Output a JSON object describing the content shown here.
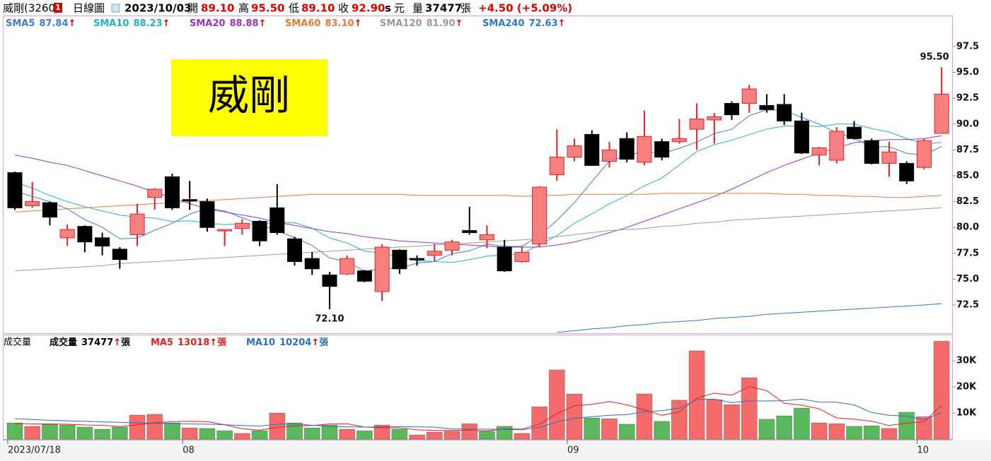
{
  "header": {
    "name": "威剛(3260)",
    "badge": "1",
    "period": "日線圖",
    "date": "2023/10/03",
    "fields": [
      {
        "label": "開",
        "value": "89.10"
      },
      {
        "label": "高",
        "value": "95.50"
      },
      {
        "label": "低",
        "value": "89.10"
      },
      {
        "label": "收",
        "value": "92.90"
      }
    ],
    "unit_s": "s",
    "currency": "元",
    "volume_label": "量",
    "volume": "37477",
    "volume_unit": "張",
    "change": "+4.50 (+5.09%)"
  },
  "chart_data": [
    {
      "type": "candlestick",
      "watermark": "威剛",
      "max_label": "95.50",
      "min_label": "72.10",
      "up_color": "#f67f7f",
      "up_line": "#e02424",
      "down_color": "#000000",
      "ylim": [
        69.77,
        100.5
      ],
      "yticks": [
        72.5,
        {
          "value": 75,
          "label": "75.0"
        },
        77.5,
        {
          "value": 80,
          "label": "80.0"
        },
        82.5,
        {
          "value": 85,
          "label": "85.0"
        },
        87.5,
        {
          "value": 90,
          "label": "90.0"
        },
        92.5,
        {
          "value": 95,
          "label": "95.0"
        },
        97.5
      ],
      "open": [
        85.3,
        82.1,
        82.4,
        79.0,
        80.1,
        79.0,
        77.9,
        79.3,
        82.9,
        84.9,
        82.7,
        82.5,
        79.7,
        79.9,
        80.6,
        81.9,
        78.9,
        77.0,
        75.4,
        75.5,
        75.8,
        73.8,
        77.8,
        77.0,
        77.3,
        77.8,
        79.7,
        78.8,
        78.1,
        76.7,
        78.4,
        85.1,
        86.8,
        89.0,
        86.4,
        88.6,
        86.3,
        88.3,
        88.3,
        89.5,
        90.4,
        92.0,
        92.0,
        91.8,
        91.9,
        90.3,
        87.0,
        86.5,
        89.7,
        88.4,
        86.2,
        86.2,
        85.8,
        89.1
      ],
      "high": [
        85.4,
        84.4,
        82.5,
        80.3,
        80.2,
        79.5,
        78.1,
        82.3,
        83.8,
        85.2,
        84.5,
        82.8,
        79.8,
        80.8,
        80.7,
        84.2,
        79.1,
        77.6,
        75.7,
        77.3,
        75.9,
        78.4,
        77.9,
        77.3,
        78.4,
        78.8,
        82.0,
        80.2,
        78.8,
        78.1,
        84.0,
        89.5,
        88.6,
        89.4,
        88.3,
        89.2,
        91.3,
        88.6,
        90.5,
        92.0,
        91.1,
        92.2,
        93.8,
        92.9,
        92.9,
        91.1,
        87.8,
        89.7,
        90.3,
        88.6,
        88.3,
        86.4,
        88.6,
        95.5
      ],
      "low": [
        81.7,
        81.9,
        80.2,
        78.2,
        77.6,
        77.3,
        76.0,
        78.2,
        81.7,
        81.7,
        81.7,
        79.6,
        78.2,
        79.3,
        78.2,
        79.3,
        76.3,
        75.4,
        72.1,
        75.4,
        74.7,
        72.9,
        75.5,
        76.3,
        76.7,
        77.3,
        79.3,
        78.0,
        75.7,
        76.6,
        78.1,
        84.5,
        86.4,
        86.0,
        85.8,
        86.3,
        86.0,
        86.5,
        88.1,
        87.5,
        88.1,
        90.4,
        91.1,
        91.1,
        89.9,
        87.1,
        86.0,
        86.2,
        88.5,
        86.1,
        84.9,
        84.2,
        85.6,
        89.1
      ],
      "close": [
        81.9,
        82.5,
        81.0,
        79.8,
        78.6,
        78.2,
        76.9,
        81.3,
        83.7,
        81.9,
        82.6,
        80.0,
        79.8,
        80.4,
        78.7,
        79.5,
        76.7,
        76.0,
        74.3,
        77.0,
        74.8,
        78.1,
        76.0,
        76.9,
        77.7,
        78.6,
        79.5,
        79.3,
        75.8,
        77.6,
        83.9,
        86.8,
        87.9,
        86.0,
        87.5,
        86.6,
        88.8,
        86.8,
        88.6,
        90.5,
        90.7,
        90.9,
        93.4,
        91.4,
        90.3,
        87.2,
        87.7,
        89.3,
        88.6,
        86.2,
        87.3,
        84.5,
        88.4,
        92.9
      ],
      "series": [
        {
          "name": "SMA5",
          "color": "#3b7dd8",
          "last_label": "87.84",
          "trend": "↑",
          "values": [
            83.5,
            83.0,
            82.5,
            81.8,
            80.76,
            80.02,
            78.9,
            78.96,
            79.74,
            80.4,
            81.28,
            81.9,
            81.6,
            80.94,
            80.3,
            79.68,
            79.02,
            78.26,
            77.04,
            76.7,
            75.76,
            76.04,
            76.04,
            76.56,
            76.7,
            77.46,
            77.74,
            78.4,
            78.18,
            78.16,
            79.22,
            80.68,
            82.4,
            84.44,
            86.42,
            86.96,
            87.36,
            87.14,
            87.66,
            88.26,
            89.08,
            89.5,
            90.82,
            91.38,
            91.34,
            90.64,
            90.0,
            89.18,
            88.62,
            87.8,
            87.82,
            87.18,
            87.0,
            87.84
          ]
        },
        {
          "name": "SMA10",
          "color": "#20b2c8",
          "last_label": "88.23",
          "trend": "↑",
          "values": [
            84.4,
            83.8,
            83.1,
            82.5,
            82.0,
            81.6,
            81.2,
            81.0,
            80.9,
            80.58,
            80.65,
            80.4,
            80.28,
            80.34,
            80.35,
            80.48,
            80.46,
            79.93,
            78.99,
            78.5,
            77.72,
            77.53,
            77.15,
            76.8,
            76.7,
            76.61,
            76.89,
            77.22,
            77.37,
            77.43,
            78.34,
            79.21,
            80.4,
            81.31,
            82.29,
            83.09,
            84.02,
            84.77,
            86.05,
            87.34,
            88.02,
            88.43,
            88.98,
            89.52,
            89.8,
            89.86,
            89.75,
            90.0,
            90.0,
            89.57,
            89.23,
            88.59,
            88.09,
            88.23
          ]
        },
        {
          "name": "SMA20",
          "color": "#9932cc",
          "last_label": "88.88",
          "trend": "↑",
          "values": [
            87.0,
            86.7,
            86.3,
            86.0,
            85.5,
            85.0,
            84.5,
            84.0,
            83.4,
            82.9,
            82.3,
            81.8,
            81.5,
            81.2,
            80.9,
            80.5,
            80.2,
            79.9,
            79.6,
            79.4,
            79.1,
            78.9,
            78.7,
            78.6,
            78.5,
            78.4,
            78.3,
            78.2,
            78.1,
            78.1,
            78.1,
            78.3,
            78.6,
            79.0,
            79.5,
            80.0,
            80.6,
            81.2,
            81.8,
            82.4,
            83.0,
            83.7,
            84.5,
            85.3,
            86.0,
            86.6,
            87.2,
            87.7,
            88.2,
            88.4,
            88.5,
            88.5,
            88.6,
            88.88
          ]
        },
        {
          "name": "SMA60",
          "color": "#e87a30",
          "last_label": "83.10",
          "trend": "↑",
          "values": [
            81.5,
            81.6,
            81.7,
            81.8,
            81.9,
            82.0,
            82.1,
            82.2,
            82.3,
            82.4,
            82.5,
            82.6,
            82.7,
            82.8,
            82.9,
            83.0,
            83.1,
            83.2,
            83.2,
            83.2,
            83.2,
            83.2,
            83.2,
            83.1,
            83.1,
            83.1,
            83.1,
            83.1,
            83.1,
            83.0,
            83.1,
            83.1,
            83.2,
            83.2,
            83.2,
            83.2,
            83.2,
            83.3,
            83.3,
            83.3,
            83.3,
            83.3,
            83.3,
            83.3,
            83.2,
            83.2,
            83.1,
            83.1,
            83.0,
            83.0,
            82.9,
            82.9,
            83.0,
            83.1
          ]
        },
        {
          "name": "SMA120",
          "color": "#9a9a9a",
          "last_label": "81.90",
          "trend": "↑",
          "values": [
            75.8,
            75.9,
            76.0,
            76.1,
            76.2,
            76.3,
            76.5,
            76.6,
            76.7,
            76.8,
            76.9,
            77.0,
            77.1,
            77.2,
            77.3,
            77.4,
            77.5,
            77.6,
            77.7,
            77.8,
            77.9,
            78.0,
            78.1,
            78.2,
            78.3,
            78.4,
            78.5,
            78.6,
            78.7,
            78.8,
            78.9,
            79.1,
            79.3,
            79.5,
            79.7,
            79.8,
            79.9,
            80.1,
            80.2,
            80.4,
            80.5,
            80.7,
            80.8,
            80.9,
            81.0,
            81.1,
            81.2,
            81.3,
            81.4,
            81.5,
            81.6,
            81.7,
            81.8,
            81.9
          ]
        },
        {
          "name": "SMA240",
          "color": "#2b7bc8",
          "last_label": "72.63",
          "trend": "↑",
          "values": [
            null,
            null,
            null,
            null,
            null,
            null,
            null,
            null,
            null,
            null,
            null,
            null,
            null,
            null,
            null,
            null,
            null,
            null,
            null,
            null,
            null,
            null,
            null,
            null,
            null,
            null,
            null,
            null,
            null,
            null,
            null,
            69.85,
            70.0,
            70.2,
            70.3,
            70.5,
            70.6,
            70.8,
            70.9,
            71.0,
            71.2,
            71.3,
            71.4,
            71.6,
            71.7,
            71.8,
            71.9,
            72.0,
            72.1,
            72.2,
            72.3,
            72.4,
            72.5,
            72.63
          ]
        }
      ]
    },
    {
      "type": "bar",
      "title": "成交量",
      "categories": [
        "2023/07/18",
        null,
        null,
        null,
        null,
        null,
        null,
        null,
        null,
        null,
        "08",
        null,
        null,
        null,
        null,
        null,
        null,
        null,
        null,
        null,
        null,
        null,
        null,
        null,
        null,
        null,
        null,
        null,
        null,
        null,
        null,
        null,
        "09",
        null,
        null,
        null,
        null,
        null,
        null,
        null,
        null,
        null,
        null,
        null,
        null,
        null,
        null,
        null,
        null,
        null,
        null,
        null,
        "10",
        null
      ],
      "ylim": [
        0,
        40000
      ],
      "yticks": [
        {
          "value": 10000,
          "label": "10K"
        },
        {
          "value": 20000,
          "label": "20K"
        },
        {
          "value": 30000,
          "label": "30K"
        }
      ],
      "series": [
        {
          "name": "成交量",
          "type": "bar",
          "color": "#000000",
          "up_color": "#f56b6b",
          "down_color": "#5cb85c",
          "last_label": "37477",
          "trend": "↑",
          "unit": "張",
          "values": [
            6200,
            4900,
            5700,
            5400,
            4600,
            3800,
            4600,
            9200,
            9500,
            6200,
            4300,
            4100,
            3200,
            2200,
            3200,
            10000,
            6200,
            4300,
            5400,
            3800,
            3200,
            5400,
            3800,
            1600,
            2700,
            3000,
            5900,
            3000,
            4900,
            2200,
            12400,
            26500,
            17300,
            8100,
            7800,
            5700,
            17300,
            6800,
            14900,
            33800,
            15100,
            13200,
            23500,
            7600,
            8900,
            11900,
            6200,
            5900,
            4900,
            5100,
            4100,
            10300,
            8600,
            37477
          ]
        },
        {
          "name": "MA5",
          "type": "line",
          "color": "#e8211e",
          "last_label": "13018",
          "trend": "↑",
          "unit": "張",
          "values": [
            6000,
            5800,
            5800,
            5700,
            5400,
            5300,
            4800,
            5500,
            6300,
            6700,
            6800,
            6700,
            5500,
            4000,
            3400,
            4500,
            5000,
            5200,
            5800,
            5900,
            4600,
            4400,
            4300,
            3600,
            3300,
            3300,
            3400,
            3200,
            3900,
            3800,
            5700,
            9800,
            12700,
            13300,
            14400,
            13100,
            11200,
            9100,
            10500,
            15700,
            17600,
            16800,
            20100,
            18600,
            13700,
            13000,
            11600,
            8100,
            7600,
            6800,
            5200,
            6100,
            6600,
            13018
          ]
        },
        {
          "name": "MA10",
          "type": "line",
          "color": "#2a6fc0",
          "last_label": "10204",
          "trend": "↑",
          "unit": "張",
          "values": [
            7800,
            7500,
            7200,
            7000,
            6800,
            6600,
            6400,
            6200,
            6100,
            6000,
            5800,
            5700,
            5500,
            5200,
            5000,
            5700,
            5800,
            5300,
            4900,
            4700,
            4600,
            4700,
            4800,
            4700,
            4600,
            3900,
            3900,
            3800,
            3700,
            3600,
            4500,
            6600,
            8000,
            8600,
            9100,
            9400,
            10500,
            10900,
            11900,
            15100,
            15300,
            14000,
            14600,
            14600,
            14700,
            15300,
            14200,
            14100,
            13100,
            10200,
            9100,
            8800,
            7400,
            10204
          ]
        }
      ]
    }
  ]
}
